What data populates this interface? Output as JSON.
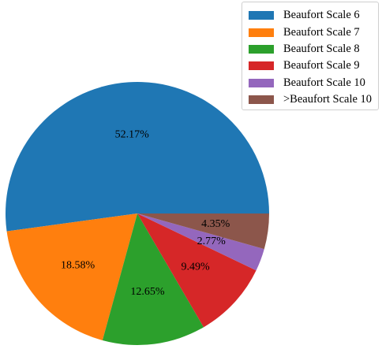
{
  "chart_data": {
    "type": "pie",
    "slices": [
      {
        "label": "Beaufort Scale 6",
        "value": 52.17,
        "value_label": "52.17%",
        "color": "#1f77b4"
      },
      {
        "label": "Beaufort Scale 7",
        "value": 18.58,
        "value_label": "18.58%",
        "color": "#ff7f0e"
      },
      {
        "label": "Beaufort Scale 8",
        "value": 12.65,
        "value_label": "12.65%",
        "color": "#2ca02c"
      },
      {
        "label": "Beaufort Scale 9",
        "value": 9.49,
        "value_label": "9.49%",
        "color": "#d62728"
      },
      {
        "label": "Beaufort Scale 10",
        "value": 2.77,
        "value_label": "2.77%",
        "color": "#9467bd"
      },
      {
        "label": ">Beaufort Scale 10",
        "value": 4.35,
        "value_label": "4.35%",
        "color": "#8c564b"
      }
    ],
    "start_angle_deg": 0,
    "direction": "counterclockwise",
    "legend_position": "top-right"
  }
}
